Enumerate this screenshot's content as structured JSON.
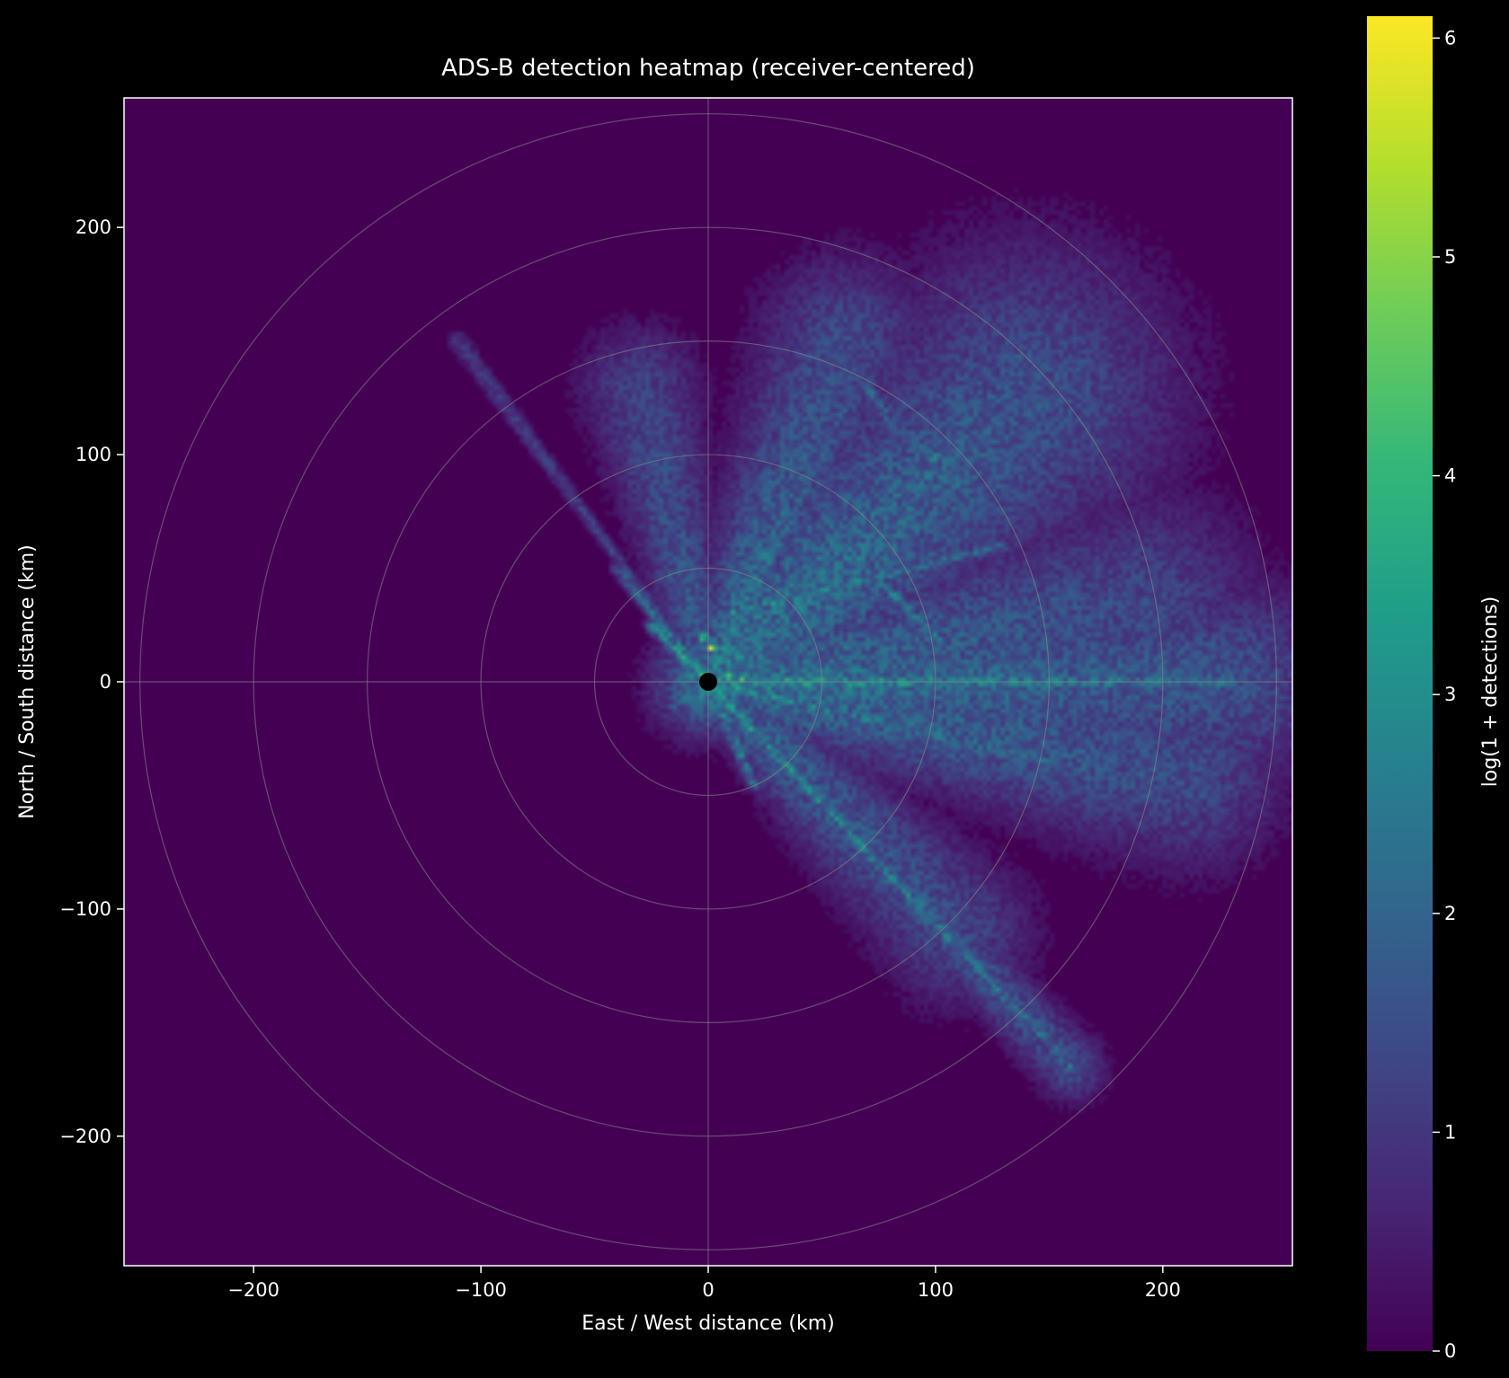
{
  "chart_data": {
    "type": "heatmap",
    "title": "ADS-B detection heatmap (receiver-centered)",
    "xlabel": "East / West distance (km)",
    "ylabel": "North / South distance (km)",
    "xlim": [
      -257,
      257
    ],
    "ylim": [
      -257,
      257
    ],
    "xticks": [
      -200,
      -100,
      0,
      100,
      200
    ],
    "yticks": [
      -200,
      -100,
      0,
      100,
      200
    ],
    "xtick_labels": [
      "−200",
      "−100",
      "0",
      "100",
      "200"
    ],
    "ytick_labels": [
      "−200",
      "−100",
      "0",
      "100",
      "200"
    ],
    "range_rings_km": [
      50,
      100,
      150,
      200,
      250
    ],
    "grid": true,
    "receiver": {
      "x": 0,
      "y": 0
    },
    "colorbar": {
      "label": "log(1 + detections)",
      "min": 0,
      "max": 6.1,
      "ticks": [
        0,
        1,
        2,
        3,
        4,
        5,
        6
      ],
      "tick_labels": [
        "0",
        "1",
        "2",
        "3",
        "4",
        "5",
        "6"
      ],
      "colormap": "viridis"
    },
    "density_lobes": [
      {
        "from": [
          0,
          0
        ],
        "to": [
          140,
          125
        ],
        "spread_km": 45,
        "intensity": 2.6
      },
      {
        "from": [
          0,
          0
        ],
        "to": [
          60,
          150
        ],
        "spread_km": 25,
        "intensity": 2.3
      },
      {
        "from": [
          0,
          0
        ],
        "to": [
          -30,
          130
        ],
        "spread_km": 18,
        "intensity": 2.0
      },
      {
        "from": [
          0,
          0
        ],
        "to": [
          230,
          0
        ],
        "spread_km": 30,
        "intensity": 2.6
      },
      {
        "from": [
          0,
          0
        ],
        "to": [
          210,
          -40
        ],
        "spread_km": 28,
        "intensity": 2.4
      },
      {
        "from": [
          0,
          0
        ],
        "to": [
          190,
          30
        ],
        "spread_km": 35,
        "intensity": 2.3
      },
      {
        "from": [
          0,
          0
        ],
        "to": [
          160,
          -170
        ],
        "spread_km": 10,
        "intensity": 2.4
      },
      {
        "from": [
          0,
          0
        ],
        "to": [
          110,
          -110
        ],
        "spread_km": 22,
        "intensity": 2.2
      },
      {
        "from": [
          0,
          0
        ],
        "to": [
          -110,
          150
        ],
        "spread_km": 3,
        "intensity": 1.6
      }
    ],
    "bright_tracks": [
      {
        "from": [
          0,
          0
        ],
        "to": [
          230,
          0
        ],
        "intensity": 3.6
      },
      {
        "from": [
          0,
          0
        ],
        "to": [
          -25,
          25
        ],
        "intensity": 3.8
      },
      {
        "from": [
          0,
          0
        ],
        "to": [
          -40,
          50
        ],
        "intensity": 2.8
      },
      {
        "from": [
          10,
          30
        ],
        "to": [
          130,
          60
        ],
        "intensity": 3.0
      },
      {
        "from": [
          0,
          0
        ],
        "to": [
          40,
          90
        ],
        "intensity": 2.8
      },
      {
        "from": [
          0,
          0
        ],
        "to": [
          150,
          -35
        ],
        "intensity": 3.0
      },
      {
        "from": [
          60,
          60
        ],
        "to": [
          155,
          -35
        ],
        "intensity": 2.8
      },
      {
        "from": [
          0,
          0
        ],
        "to": [
          160,
          -170
        ],
        "intensity": 3.2
      },
      {
        "from": [
          0,
          0
        ],
        "to": [
          20,
          -45
        ],
        "intensity": 3.2
      },
      {
        "from": [
          100,
          100
        ],
        "to": [
          40,
          -30
        ],
        "intensity": 2.6
      },
      {
        "from": [
          0,
          0
        ],
        "to": [
          -15,
          -10
        ],
        "intensity": 3.0
      },
      {
        "from": [
          0,
          0
        ],
        "to": [
          60,
          120
        ],
        "intensity": 2.8
      },
      {
        "from": [
          70,
          130
        ],
        "to": [
          90,
          100
        ],
        "intensity": 2.4
      }
    ],
    "hotspots": [
      {
        "x": 15,
        "y": 2,
        "value": 5.6
      },
      {
        "x": 30,
        "y": 1,
        "value": 5.2
      },
      {
        "x": 8,
        "y": 3,
        "value": 6.1
      },
      {
        "x": -2,
        "y": 20,
        "value": 5.4
      },
      {
        "x": 2,
        "y": 15,
        "value": 5.8
      }
    ]
  }
}
